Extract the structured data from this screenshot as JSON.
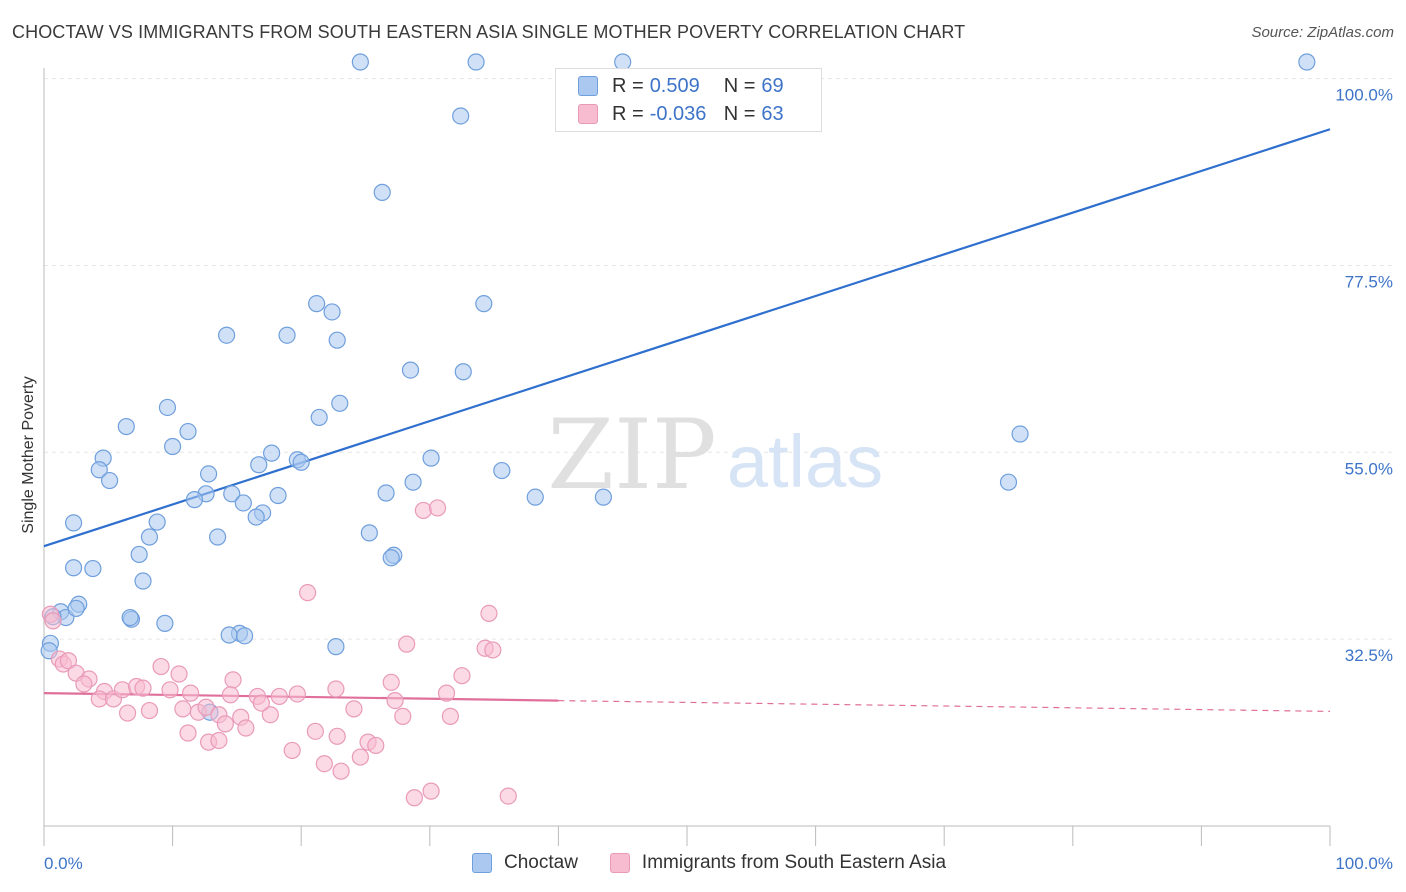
{
  "title": "CHOCTAW VS IMMIGRANTS FROM SOUTH EASTERN ASIA SINGLE MOTHER POVERTY CORRELATION CHART",
  "source": "Source: ZipAtlas.com",
  "watermark": {
    "zip": "ZIP",
    "atlas": "atlas"
  },
  "stats_legend": [
    {
      "r_label": "R =",
      "r_value": "0.509",
      "n_label": "N =",
      "n_value": "69"
    },
    {
      "r_label": "R =",
      "r_value": "-0.036",
      "n_label": "N =",
      "n_value": "63"
    }
  ],
  "bottom_legend": [
    "Choctaw",
    "Immigrants from South Eastern Asia"
  ],
  "colors": {
    "choctaw_fill": "#aac8f0",
    "choctaw_stroke": "#6f9fdc",
    "choctaw_line": "#2f6fce",
    "immig_fill": "#f7bcd0",
    "immig_stroke": "#e99ab8",
    "immig_line": "#e0709b",
    "tick_label": "#3d74c8"
  },
  "chart_data": {
    "type": "scatter",
    "title": "CHOCTAW VS IMMIGRANTS FROM SOUTH EASTERN ASIA SINGLE MOTHER POVERTY CORRELATION CHART",
    "xlabel": "",
    "ylabel": "Single Mother Poverty",
    "xlim": [
      0,
      100
    ],
    "ylim": [
      10,
      102
    ],
    "x_tick_labels": [
      "0.0%",
      "100.0%"
    ],
    "y_ticks": [
      32.5,
      55.0,
      77.5,
      100.0
    ],
    "y_tick_labels": [
      "32.5%",
      "55.0%",
      "77.5%",
      "100.0%"
    ],
    "grid": true,
    "legend_position": "top-center",
    "series": [
      {
        "name": "Choctaw",
        "r": 0.509,
        "n": 69,
        "trend": {
          "x": [
            0,
            100
          ],
          "y": [
            43.7,
            93.9
          ]
        },
        "points": [
          [
            24.6,
            102
          ],
          [
            33.6,
            102
          ],
          [
            98.2,
            102
          ],
          [
            45.0,
            102
          ],
          [
            32.4,
            95.5
          ],
          [
            26.3,
            86.3
          ],
          [
            21.2,
            72.9
          ],
          [
            22.4,
            71.9
          ],
          [
            34.2,
            72.9
          ],
          [
            14.2,
            69.1
          ],
          [
            18.9,
            69.1
          ],
          [
            22.8,
            68.5
          ],
          [
            28.5,
            64.9
          ],
          [
            32.6,
            64.7
          ],
          [
            23.0,
            60.9
          ],
          [
            9.6,
            60.4
          ],
          [
            21.4,
            59.2
          ],
          [
            6.4,
            58.1
          ],
          [
            11.2,
            57.5
          ],
          [
            75.9,
            57.2
          ],
          [
            10.0,
            55.7
          ],
          [
            17.7,
            54.9
          ],
          [
            4.6,
            54.3
          ],
          [
            30.1,
            54.3
          ],
          [
            19.7,
            54.1
          ],
          [
            20.0,
            53.8
          ],
          [
            16.7,
            53.5
          ],
          [
            4.3,
            52.9
          ],
          [
            35.6,
            52.8
          ],
          [
            12.8,
            52.4
          ],
          [
            5.1,
            51.6
          ],
          [
            28.7,
            51.4
          ],
          [
            75.0,
            51.4
          ],
          [
            26.6,
            50.1
          ],
          [
            12.6,
            50.0
          ],
          [
            14.6,
            50.0
          ],
          [
            18.2,
            49.8
          ],
          [
            11.7,
            49.3
          ],
          [
            38.2,
            49.6
          ],
          [
            43.5,
            49.6
          ],
          [
            15.5,
            48.9
          ],
          [
            17.0,
            47.7
          ],
          [
            16.5,
            47.2
          ],
          [
            2.3,
            46.5
          ],
          [
            8.8,
            46.6
          ],
          [
            25.3,
            45.3
          ],
          [
            8.2,
            44.8
          ],
          [
            13.5,
            44.8
          ],
          [
            27.2,
            42.6
          ],
          [
            27.0,
            42.3
          ],
          [
            7.4,
            42.7
          ],
          [
            2.3,
            41.1
          ],
          [
            3.8,
            41.0
          ],
          [
            7.7,
            39.5
          ],
          [
            2.7,
            36.7
          ],
          [
            1.3,
            35.8
          ],
          [
            1.7,
            35.1
          ],
          [
            0.7,
            35.2
          ],
          [
            6.8,
            34.9
          ],
          [
            9.4,
            34.4
          ],
          [
            15.2,
            33.2
          ],
          [
            14.4,
            33.0
          ],
          [
            15.6,
            32.9
          ],
          [
            22.7,
            31.6
          ],
          [
            0.5,
            32.0
          ],
          [
            12.9,
            23.7
          ],
          [
            0.4,
            31.1
          ],
          [
            2.5,
            36.2
          ],
          [
            6.7,
            35.1
          ]
        ]
      },
      {
        "name": "Immigrants from South Eastern Asia",
        "r": -0.036,
        "n": 63,
        "trend": {
          "x": [
            0,
            40,
            100
          ],
          "y": [
            26.0,
            25.1,
            23.8
          ],
          "solid_until": 40
        },
        "points": [
          [
            0.5,
            35.5
          ],
          [
            0.7,
            34.7
          ],
          [
            1.2,
            30.1
          ],
          [
            1.5,
            29.5
          ],
          [
            1.9,
            29.9
          ],
          [
            2.5,
            28.4
          ],
          [
            3.5,
            27.7
          ],
          [
            3.1,
            27.1
          ],
          [
            4.7,
            26.2
          ],
          [
            4.3,
            25.3
          ],
          [
            5.4,
            25.3
          ],
          [
            6.1,
            26.4
          ],
          [
            6.5,
            23.6
          ],
          [
            7.2,
            26.8
          ],
          [
            8.2,
            23.9
          ],
          [
            9.1,
            29.2
          ],
          [
            7.7,
            26.6
          ],
          [
            10.5,
            28.3
          ],
          [
            9.8,
            26.4
          ],
          [
            11.2,
            21.2
          ],
          [
            10.8,
            24.1
          ],
          [
            11.4,
            26.0
          ],
          [
            12.0,
            23.7
          ],
          [
            12.6,
            24.3
          ],
          [
            12.8,
            20.1
          ],
          [
            13.6,
            23.4
          ],
          [
            13.6,
            20.3
          ],
          [
            14.7,
            27.6
          ],
          [
            14.1,
            22.3
          ],
          [
            14.5,
            25.8
          ],
          [
            15.3,
            23.1
          ],
          [
            15.7,
            21.8
          ],
          [
            16.6,
            25.6
          ],
          [
            17.6,
            23.4
          ],
          [
            16.9,
            24.8
          ],
          [
            18.3,
            25.6
          ],
          [
            19.3,
            19.1
          ],
          [
            19.7,
            25.9
          ],
          [
            20.5,
            38.1
          ],
          [
            21.1,
            21.4
          ],
          [
            21.8,
            17.5
          ],
          [
            22.7,
            26.5
          ],
          [
            22.8,
            20.8
          ],
          [
            23.1,
            16.6
          ],
          [
            24.1,
            24.1
          ],
          [
            24.6,
            18.3
          ],
          [
            25.2,
            20.1
          ],
          [
            25.8,
            19.7
          ],
          [
            27.0,
            27.3
          ],
          [
            27.3,
            25.1
          ],
          [
            28.2,
            31.9
          ],
          [
            27.9,
            23.2
          ],
          [
            28.8,
            13.4
          ],
          [
            30.1,
            14.2
          ],
          [
            29.5,
            48.0
          ],
          [
            30.6,
            48.3
          ],
          [
            31.3,
            26.0
          ],
          [
            31.6,
            23.2
          ],
          [
            32.5,
            28.1
          ],
          [
            34.6,
            35.6
          ],
          [
            34.3,
            31.4
          ],
          [
            34.9,
            31.2
          ],
          [
            36.1,
            13.6
          ]
        ]
      }
    ]
  }
}
